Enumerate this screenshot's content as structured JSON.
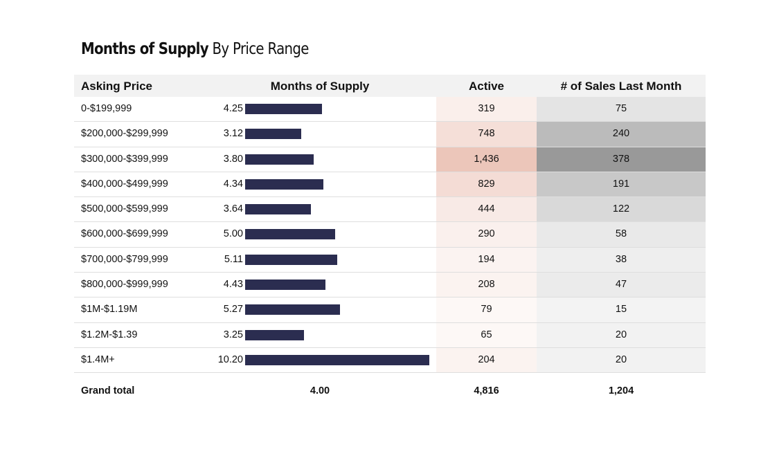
{
  "title": {
    "bold": "Months of Supply",
    "light": "By Price Range"
  },
  "headers": {
    "price": "Asking Price",
    "mos": "Months of Supply",
    "active": "Active",
    "sales": "# of Sales Last Month"
  },
  "colors": {
    "bar": "#2b2d50",
    "active_heat": "#e9c4b8",
    "sales_heat": "#999999"
  },
  "chart_data": {
    "type": "table",
    "title": "Months of Supply By Price Range",
    "columns": [
      "Asking Price",
      "Months of Supply",
      "Active",
      "# of Sales Last Month"
    ],
    "rows": [
      {
        "price": "0-$199,999",
        "mos": "4.25",
        "active": "319",
        "sales": "75"
      },
      {
        "price": "$200,000-$299,999",
        "mos": "3.12",
        "active": "748",
        "sales": "240"
      },
      {
        "price": "$300,000-$399,999",
        "mos": "3.80",
        "active": "1,436",
        "sales": "378"
      },
      {
        "price": "$400,000-$499,999",
        "mos": "4.34",
        "active": "829",
        "sales": "191"
      },
      {
        "price": "$500,000-$599,999",
        "mos": "3.64",
        "active": "444",
        "sales": "122"
      },
      {
        "price": "$600,000-$699,999",
        "mos": "5.00",
        "active": "290",
        "sales": "58"
      },
      {
        "price": "$700,000-$799,999",
        "mos": "5.11",
        "active": "194",
        "sales": "38"
      },
      {
        "price": "$800,000-$999,999",
        "mos": "4.43",
        "active": "208",
        "sales": "47"
      },
      {
        "price": "$1M-$1.19M",
        "mos": "5.27",
        "active": "79",
        "sales": "15"
      },
      {
        "price": "$1.2M-$1.39",
        "mos": "3.25",
        "active": "65",
        "sales": "20"
      },
      {
        "price": "$1.4M+",
        "mos": "10.20",
        "active": "204",
        "sales": "20"
      }
    ],
    "total": {
      "label": "Grand total",
      "mos": "4.00",
      "active": "4,816",
      "sales": "1,204"
    },
    "bar_max": 10.2
  }
}
